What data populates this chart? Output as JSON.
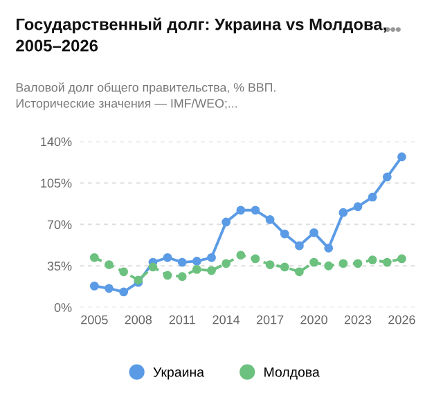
{
  "chart_data": {
    "type": "line",
    "title": "Государственный долг: Украина vs Молдова,\n2005–2026",
    "subtitle": "Валовой долг общего правительства, % ВВП.\nИсторические значения — IMF/WEO;...",
    "x": [
      2005,
      2006,
      2007,
      2008,
      2009,
      2010,
      2011,
      2012,
      2013,
      2014,
      2015,
      2016,
      2017,
      2018,
      2019,
      2020,
      2021,
      2022,
      2023,
      2024,
      2025,
      2026
    ],
    "series": [
      {
        "name": "Украина",
        "color": "#5b9be6",
        "line_style": "solid",
        "values": [
          18,
          16,
          13,
          21,
          38,
          42,
          38,
          39,
          42,
          72,
          82,
          82,
          74,
          62,
          52,
          63,
          50,
          80,
          85,
          93,
          110,
          127
        ]
      },
      {
        "name": "Молдова",
        "color": "#6cc17f",
        "line_style": "dashed",
        "values": [
          42,
          36,
          30,
          23,
          34,
          27,
          26,
          32,
          31,
          37,
          44,
          41,
          36,
          34,
          30,
          38,
          35,
          37,
          37,
          40,
          38,
          41
        ]
      }
    ],
    "xlim": [
      2004,
      2027
    ],
    "ylim": [
      0,
      140
    ],
    "xticks": [
      2005,
      2008,
      2011,
      2014,
      2017,
      2020,
      2023,
      2026
    ],
    "yticks": [
      {
        "value": 0,
        "label": "0%"
      },
      {
        "value": 35,
        "label": "35%"
      },
      {
        "value": 70,
        "label": "70%"
      },
      {
        "value": 105,
        "label": "105%"
      },
      {
        "value": 140,
        "label": "140%"
      }
    ],
    "grid": "y",
    "legend": "bottom",
    "marker": "circle"
  }
}
